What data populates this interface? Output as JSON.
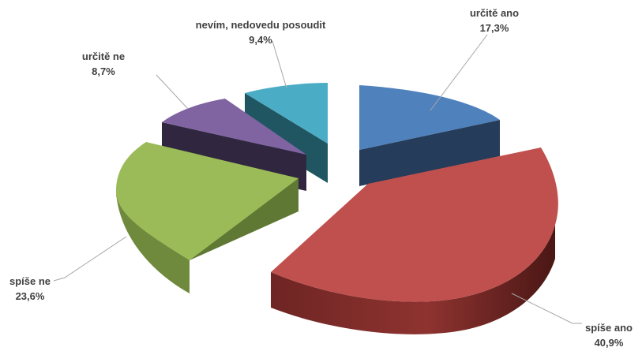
{
  "chart_data": {
    "type": "pie",
    "style": "3d-exploded",
    "slices": [
      {
        "name": "určitě ano",
        "label": "určitě ano",
        "value_label": "17,3%",
        "value": 17.3,
        "color": "#4f81bd"
      },
      {
        "name": "spíše ano",
        "label": "spíše ano",
        "value_label": "40,9%",
        "value": 40.9,
        "color": "#c0504d"
      },
      {
        "name": "spíše ne",
        "label": "spíše ne",
        "value_label": "23,6%",
        "value": 23.6,
        "color": "#9bbb59"
      },
      {
        "name": "určitě ne",
        "label": "určitě ne",
        "value_label": "8,7%",
        "value": 8.7,
        "color": "#8064a2"
      },
      {
        "name": "nevím, nedovedu posoudit",
        "label": "nevím, nedovedu posoudit",
        "value_label": "9,4%",
        "value": 9.4,
        "color": "#4bacc6"
      }
    ]
  }
}
